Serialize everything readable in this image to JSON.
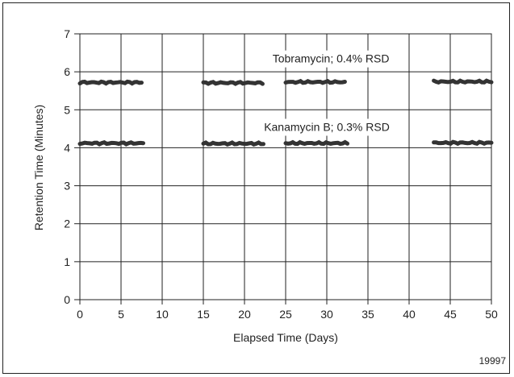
{
  "chart_data": {
    "type": "scatter",
    "xlabel": "Elapsed Time (Days)",
    "ylabel": "Retention Time (Minutes)",
    "xlim": [
      0,
      50
    ],
    "ylim": [
      0,
      7
    ],
    "xticks": [
      0,
      5,
      10,
      15,
      20,
      25,
      30,
      35,
      40,
      45,
      50
    ],
    "yticks": [
      0,
      1,
      2,
      3,
      4,
      5,
      6,
      7
    ],
    "grid": true,
    "figure_id": "19997",
    "series": [
      {
        "name": "Tobramycin; 0.4% RSD",
        "color": "#333333",
        "segments": [
          {
            "x_start": 0.0,
            "x_end": 7.5,
            "y": 5.72
          },
          {
            "x_start": 15.0,
            "x_end": 22.2,
            "y": 5.71
          },
          {
            "x_start": 25.0,
            "x_end": 32.2,
            "y": 5.73
          },
          {
            "x_start": 43.0,
            "x_end": 50.0,
            "y": 5.74
          }
        ]
      },
      {
        "name": "Kanamycin B; 0.3% RSD",
        "color": "#333333",
        "segments": [
          {
            "x_start": 0.0,
            "x_end": 7.7,
            "y": 4.12
          },
          {
            "x_start": 15.0,
            "x_end": 22.3,
            "y": 4.11
          },
          {
            "x_start": 25.0,
            "x_end": 32.5,
            "y": 4.12
          },
          {
            "x_start": 43.0,
            "x_end": 50.0,
            "y": 4.13
          }
        ]
      }
    ]
  }
}
